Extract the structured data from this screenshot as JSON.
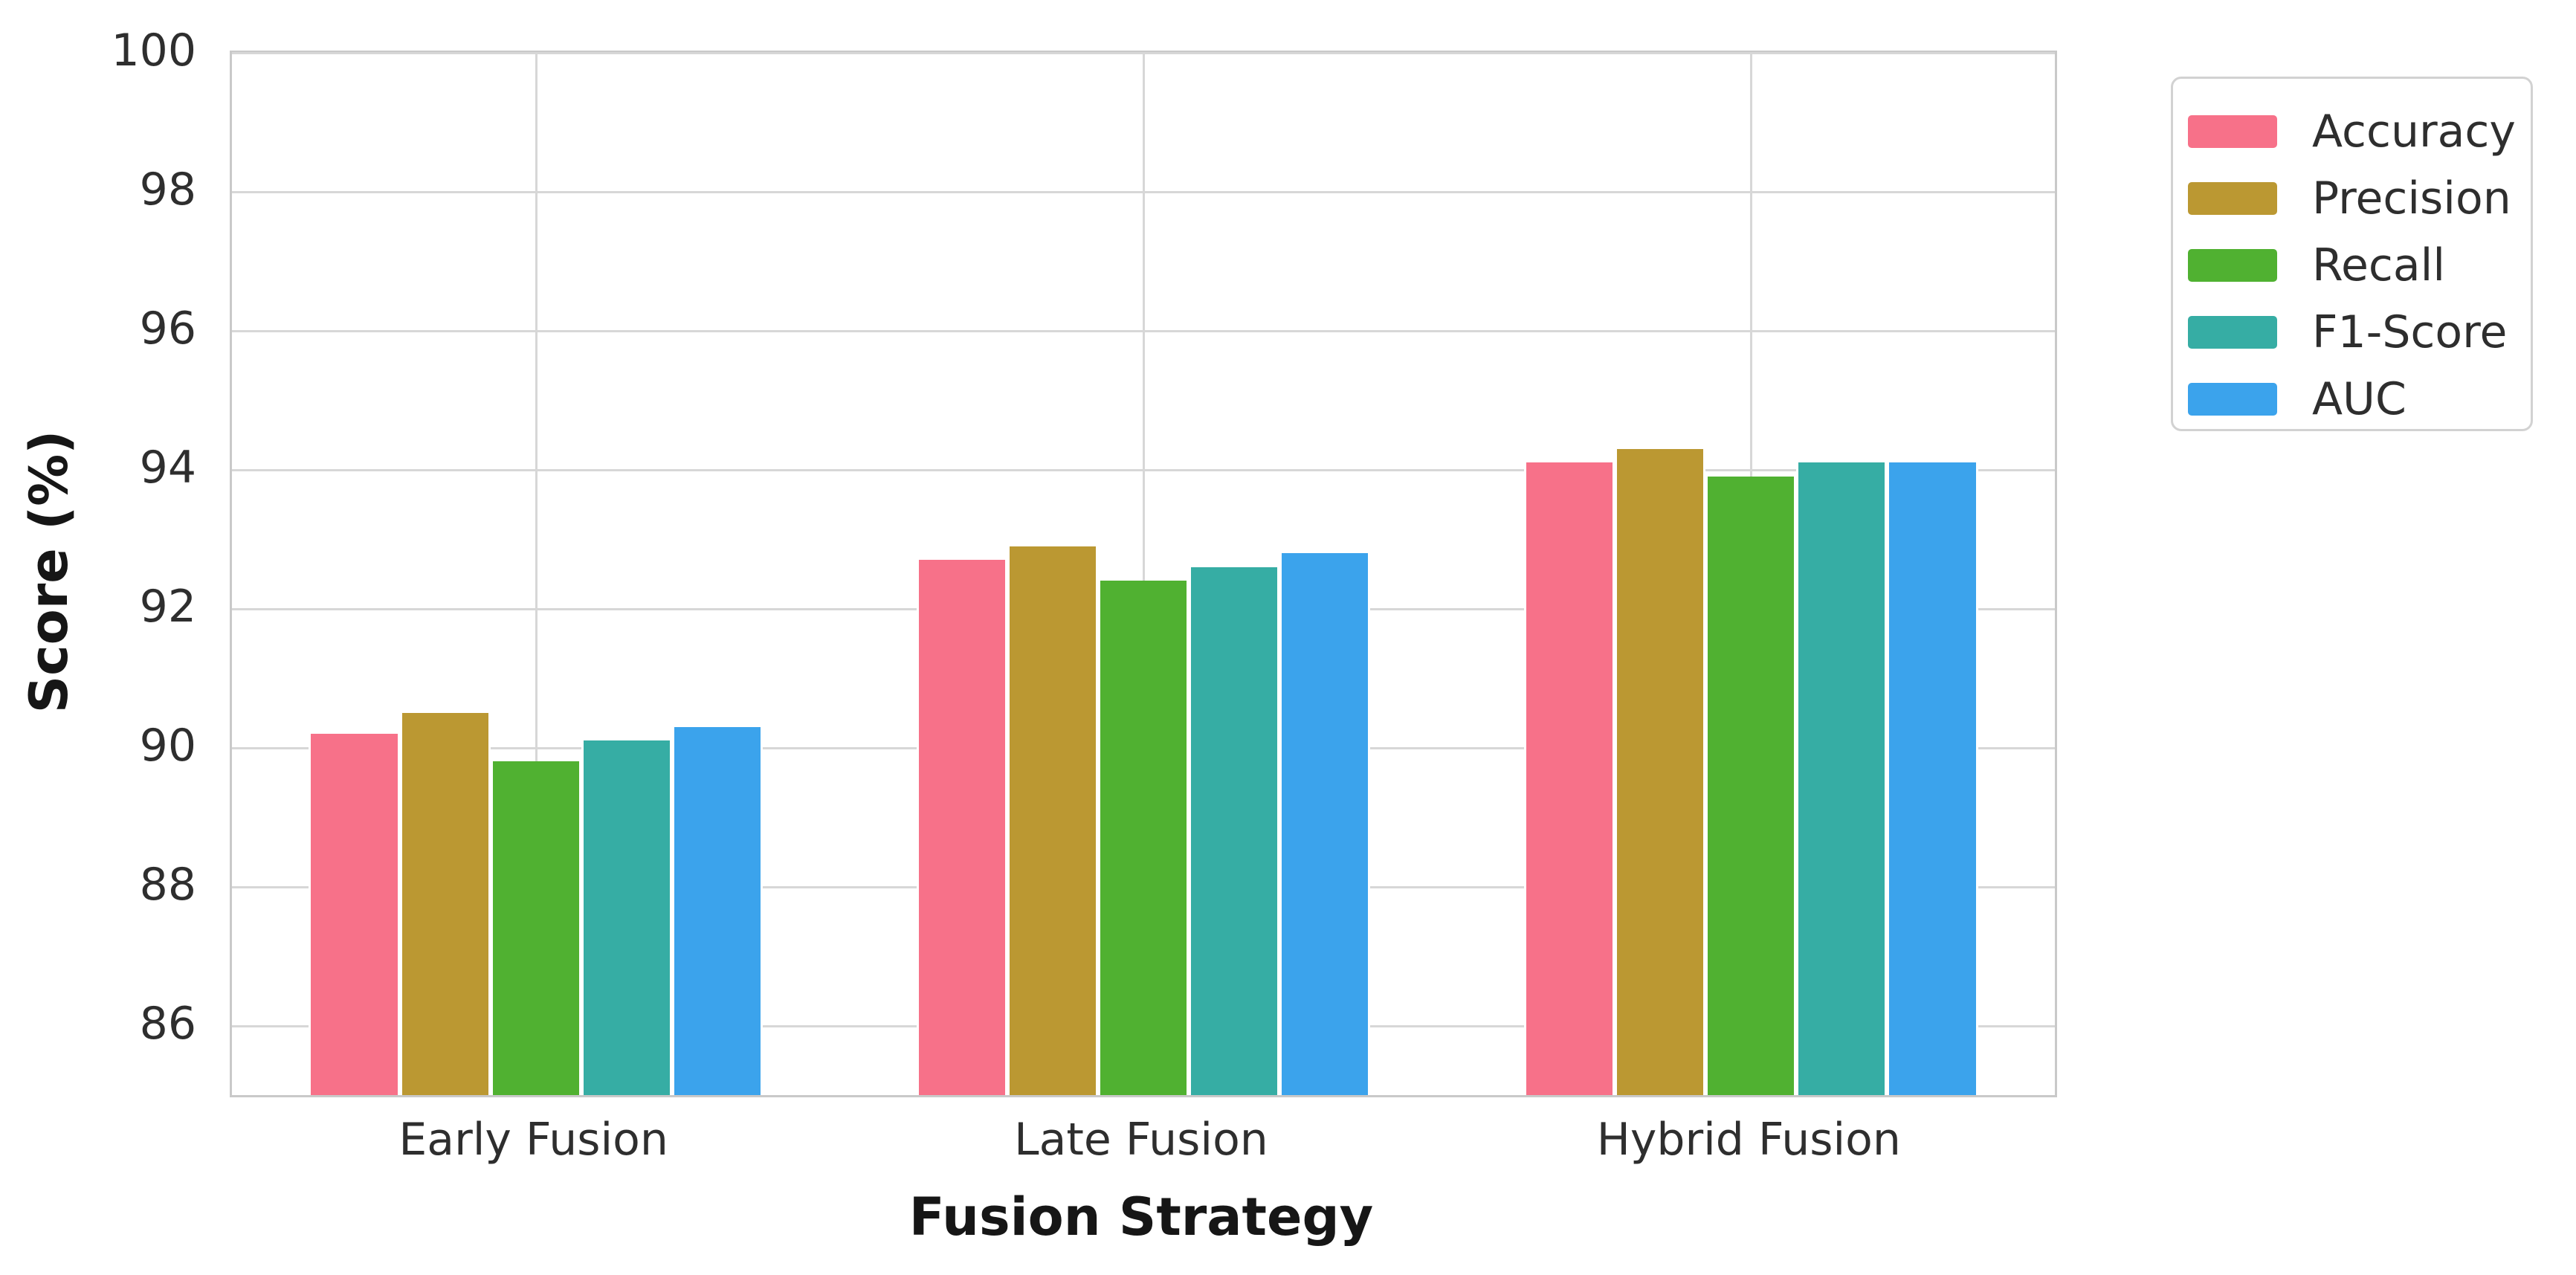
{
  "chart_data": {
    "type": "bar",
    "title": "",
    "xlabel": "Fusion Strategy",
    "ylabel": "Score (%)",
    "categories": [
      "Early Fusion",
      "Late Fusion",
      "Hybrid Fusion"
    ],
    "series": [
      {
        "name": "Accuracy",
        "color": "#f77189",
        "values": [
          90.2,
          92.7,
          94.1
        ]
      },
      {
        "name": "Precision",
        "color": "#bb9832",
        "values": [
          90.5,
          92.9,
          94.3
        ]
      },
      {
        "name": "Recall",
        "color": "#50b131",
        "values": [
          89.8,
          92.4,
          93.9
        ]
      },
      {
        "name": "F1-Score",
        "color": "#36ada4",
        "values": [
          90.1,
          92.6,
          94.1
        ]
      },
      {
        "name": "AUC",
        "color": "#3ba3ec",
        "values": [
          90.3,
          92.8,
          94.1
        ]
      }
    ],
    "ylim": [
      85,
      100
    ],
    "yticks": [
      86,
      88,
      90,
      92,
      94,
      96,
      98,
      100
    ],
    "grid": true,
    "grid_color": "#d7d7d7",
    "background_color": "#ffffff",
    "legend_position": "upper right outside",
    "bar_group_width_fraction": 0.747
  }
}
